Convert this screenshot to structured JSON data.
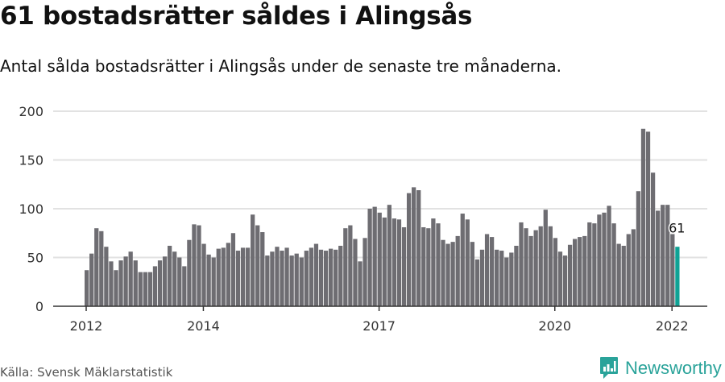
{
  "header": {
    "title": "61 bostadsrätter såldes i Alingsås",
    "subtitle": "Antal sålda bostadsrätter i Alingsås under de senaste tre månaderna."
  },
  "footer": {
    "source": "Källa: Svensk Mäklarstatistik",
    "logo_text": "Newsworthy",
    "logo_icon": "bar-chart-speech-bubble-icon"
  },
  "colors": {
    "bar": "#6e6d72",
    "highlight": "#0fa295",
    "grid": "#e2e2e2",
    "axis": "#333333",
    "brand": "#2aa39a"
  },
  "chart_data": {
    "type": "bar",
    "title": "61 bostadsrätter såldes i Alingsås",
    "subtitle": "Antal sålda bostadsrätter i Alingsås under de senaste tre månaderna.",
    "xlabel": "",
    "ylabel": "",
    "ylim": [
      0,
      200
    ],
    "yticks": [
      0,
      50,
      100,
      150,
      200
    ],
    "xtick_labels": [
      "2012",
      "2014",
      "2017",
      "2020",
      "2022"
    ],
    "grid": true,
    "legend": null,
    "annotation": {
      "label": "61",
      "index": 121
    },
    "highlight_index": 121,
    "x_start": "2012-01",
    "x_end": "2022-02",
    "series": [
      {
        "name": "Antal sålda bostadsrätter (rullande 3 månader)",
        "values": [
          37,
          54,
          80,
          77,
          61,
          46,
          37,
          47,
          51,
          56,
          47,
          35,
          35,
          35,
          41,
          47,
          51,
          62,
          56,
          50,
          41,
          68,
          84,
          83,
          64,
          53,
          50,
          59,
          60,
          65,
          75,
          57,
          60,
          60,
          94,
          83,
          76,
          52,
          56,
          61,
          57,
          60,
          52,
          54,
          50,
          57,
          60,
          64,
          58,
          57,
          59,
          58,
          62,
          80,
          83,
          69,
          46,
          70,
          100,
          102,
          96,
          91,
          104,
          90,
          89,
          81,
          116,
          122,
          119,
          81,
          80,
          90,
          85,
          68,
          64,
          66,
          72,
          95,
          89,
          66,
          48,
          58,
          74,
          71,
          58,
          57,
          50,
          55,
          62,
          86,
          80,
          72,
          78,
          82,
          99,
          82,
          70,
          56,
          52,
          63,
          69,
          71,
          72,
          86,
          85,
          94,
          96,
          103,
          85,
          64,
          62,
          74,
          79,
          118,
          182,
          179,
          137,
          98,
          104,
          104,
          74,
          61
        ]
      }
    ]
  }
}
